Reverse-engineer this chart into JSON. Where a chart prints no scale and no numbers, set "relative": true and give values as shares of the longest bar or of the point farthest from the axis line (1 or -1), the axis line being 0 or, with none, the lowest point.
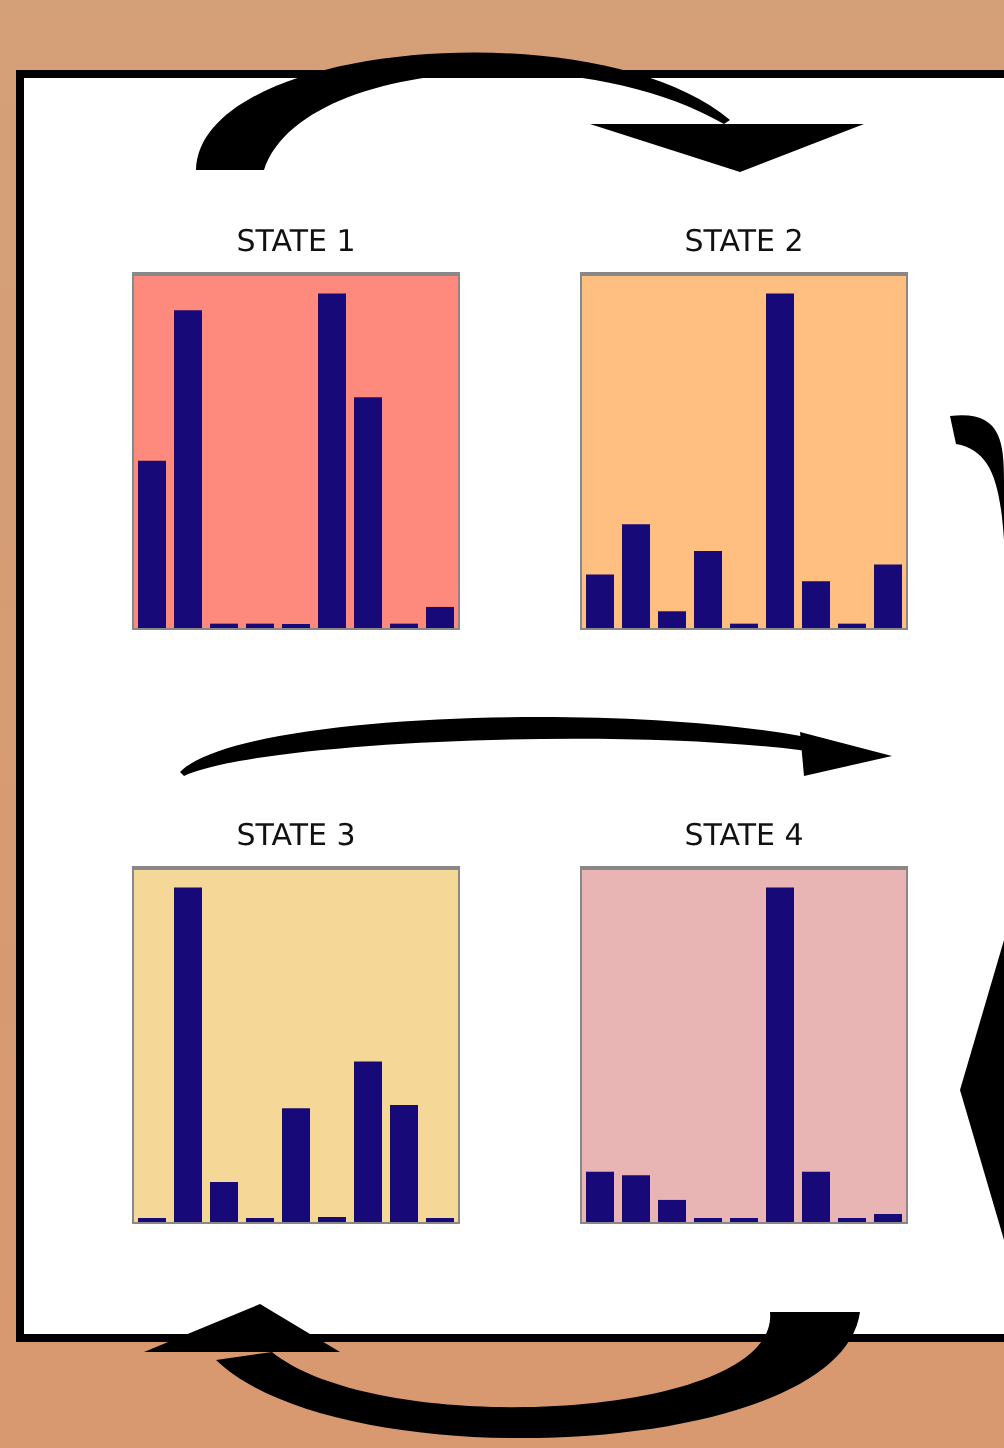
{
  "chart_data": [
    {
      "type": "bar",
      "title": "STATE 1",
      "categories": [
        null,
        null,
        null,
        null,
        null,
        null,
        null,
        null,
        null
      ],
      "values": [
        0.5,
        0.95,
        0.013,
        0.013,
        0.012,
        1,
        0.69,
        0.013,
        0.063
      ],
      "color": "#170a78",
      "relative": true
    },
    {
      "type": "bar",
      "title": "STATE 2",
      "categories": [
        null,
        null,
        null,
        null,
        null,
        null,
        null,
        null,
        null
      ],
      "values": [
        0.16,
        0.31,
        0.05,
        0.23,
        0.013,
        1,
        0.14,
        0.013,
        0.19
      ],
      "color": "#170a78",
      "relative": true
    },
    {
      "type": "bar",
      "title": "STATE 3",
      "categories": [
        null,
        null,
        null,
        null,
        null,
        null,
        null,
        null,
        null
      ],
      "values": [
        0.012,
        1,
        0.12,
        0.012,
        0.34,
        0.015,
        0.48,
        0.35,
        0.012
      ],
      "color": "#170a78",
      "relative": true
    },
    {
      "type": "bar",
      "title": "STATE 4",
      "categories": [
        null,
        null,
        null,
        null,
        null,
        null,
        null,
        null,
        null
      ],
      "values": [
        0.15,
        0.14,
        0.066,
        0.012,
        0.012,
        1,
        0.15,
        0.012,
        0.024
      ],
      "color": "#170a78",
      "relative": true
    }
  ]
}
